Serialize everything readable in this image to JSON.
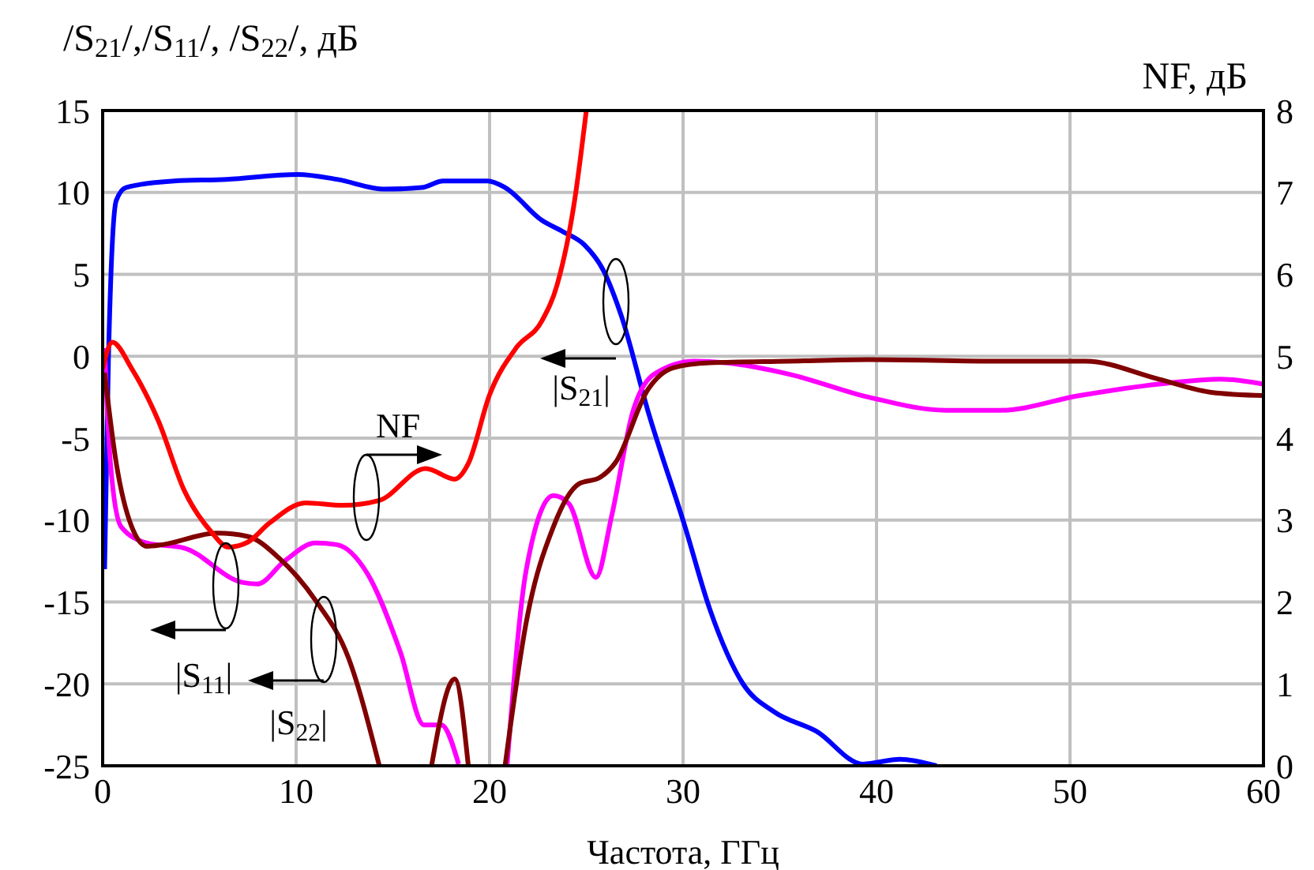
{
  "chart_data": {
    "type": "line",
    "xlabel": "Частота, ГГц",
    "ylabel": "/S$_{21}$/,/S$_{11}$/, /S$_{22}$/, дБ",
    "y2label": "NF, дБ",
    "xlim": [
      0,
      60
    ],
    "xticks": [
      0,
      10,
      20,
      30,
      40,
      50,
      60
    ],
    "ylim": [
      -25,
      15
    ],
    "yticks": [
      -25,
      -20,
      -15,
      -10,
      -5,
      0,
      5,
      10,
      15
    ],
    "y2lim": [
      0,
      8
    ],
    "y2ticks": [
      0,
      1,
      2,
      3,
      4,
      5,
      6,
      7,
      8
    ],
    "grid": true,
    "series": [
      {
        "color": "#0000ff",
        "x": [
          0.1,
          0.3,
          0.7,
          1.2,
          3.7,
          6.4,
          10.1,
          12.1,
          14.6,
          16.5,
          17.6,
          19.9,
          20.8,
          22.7,
          23.8,
          24.9,
          25.9,
          26.8,
          28.2,
          30.1,
          31.4,
          33.1,
          34.7,
          36.9,
          39.3,
          41.2,
          43.1
        ],
        "values": [
          -13,
          -0.1,
          9.5,
          10.3,
          10.7,
          10.8,
          11.1,
          10.8,
          10.2,
          10.3,
          10.7,
          10.7,
          10.3,
          8.3,
          7.6,
          6.8,
          5.2,
          2.5,
          -3.4,
          -10.4,
          -15.5,
          -20,
          -21.7,
          -22.9,
          -24.9,
          -24.6,
          -25
        ]
      },
      {
        "color": "#ff00ff",
        "x": [
          0.1,
          0.4,
          0.95,
          2.3,
          4.2,
          7.2,
          8,
          9.4,
          11,
          12.1,
          13.7,
          15.4,
          16.6,
          17.5,
          18.4,
          19.6,
          20.9,
          21.9,
          23.3,
          24.1,
          25.5,
          26.3,
          27.4,
          28.5,
          30.6,
          32.2,
          35.5,
          39.6,
          43.6,
          46.4,
          50.5,
          54.6,
          57.8,
          60
        ],
        "values": [
          0.5,
          -6.5,
          -10.4,
          -11.4,
          -11.7,
          -13.8,
          -13.9,
          -12.5,
          -11.4,
          -11.5,
          -13.3,
          -18.1,
          -22.5,
          -22.5,
          -24.9,
          null,
          -25,
          -13,
          -8.5,
          -9,
          -13.5,
          -9.8,
          -3.4,
          -1.1,
          -0.3,
          -0.4,
          -1.1,
          -2.5,
          -3.3,
          -3.3,
          -2.4,
          -1.7,
          -1.4,
          -1.7
        ]
      },
      {
        "color": "#800000",
        "x": [
          0.1,
          0.7,
          1.5,
          2.3,
          3.1,
          5.9,
          7.5,
          9.1,
          11,
          12.7,
          14.3,
          15.6,
          17,
          18.2,
          18.9,
          19.8,
          20.8,
          21.9,
          23.3,
          24.6,
          25.7,
          26.5,
          28.2,
          29.5,
          31.4,
          35.5,
          39.6,
          46.4,
          50.8,
          54.6,
          57.3,
          60
        ],
        "values": [
          -1,
          -6.5,
          -10.4,
          -11.6,
          -11.5,
          -10.8,
          -11,
          -12.3,
          -14.9,
          -18.4,
          -25,
          null,
          -25,
          -19.7,
          -25,
          null,
          -25,
          -16.2,
          -10.4,
          -7.8,
          -7.4,
          -6.5,
          -2,
          -0.7,
          -0.4,
          -0.3,
          -0.2,
          -0.3,
          -0.3,
          -1.4,
          -2.2,
          -2.4
        ]
      },
      {
        "color": "#ff0000",
        "axis": "y2",
        "x": [
          0,
          0.5,
          1.5,
          2.9,
          4.2,
          5.6,
          6.5,
          7.5,
          8.6,
          10.5,
          12.4,
          14.3,
          16.7,
          18.2,
          18.9,
          20,
          21.4,
          22.7,
          23.5,
          24.4,
          25
        ],
        "values": [
          4.85,
          5.17,
          4.85,
          4.2,
          3.37,
          2.86,
          2.67,
          2.73,
          2.96,
          3.21,
          3.18,
          3.24,
          3.63,
          3.5,
          3.69,
          4.53,
          5.11,
          5.43,
          5.88,
          6.91,
          8
        ]
      }
    ],
    "annotations": [
      "|S$_{21}$|",
      "NF",
      "|S$_{11}$|",
      "|S$_{22}$|"
    ]
  }
}
